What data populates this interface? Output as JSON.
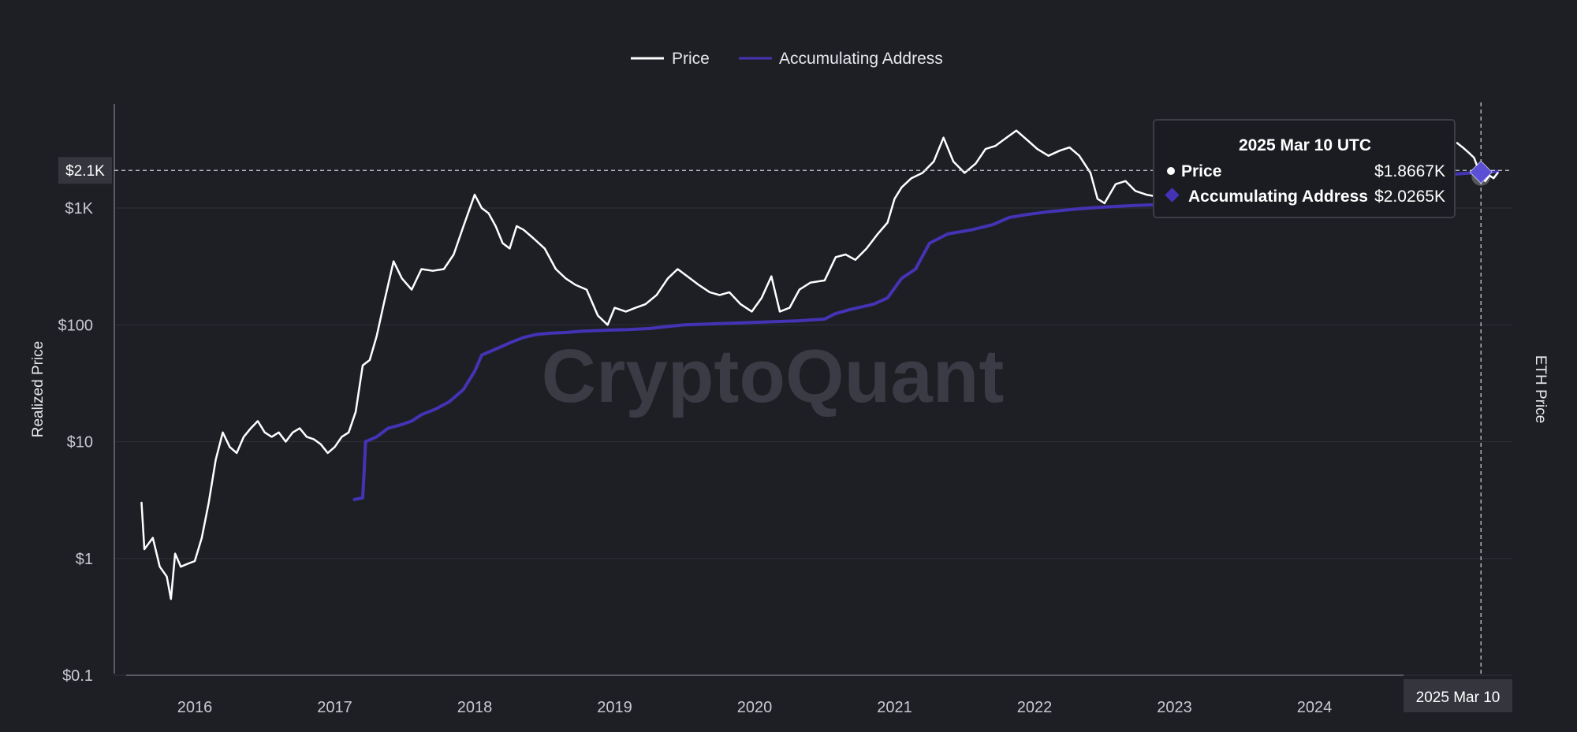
{
  "chart_data": {
    "type": "line",
    "title": "",
    "ylabel": "Realized Price",
    "y2label": "ETH Price",
    "yscale": "log",
    "ylim": [
      0.1,
      5000
    ],
    "xlim": [
      2015.6,
      2025.35
    ],
    "watermark": "CryptoQuant",
    "legend": {
      "placement": "top-center"
    },
    "grid": true,
    "y_ticks": [
      {
        "value": 0.1,
        "label": "$0.1"
      },
      {
        "value": 1,
        "label": "$1"
      },
      {
        "value": 10,
        "label": "$10"
      },
      {
        "value": 100,
        "label": "$100"
      },
      {
        "value": 1000,
        "label": "$1K"
      }
    ],
    "x_ticks": [
      {
        "value": 2016,
        "label": "2016"
      },
      {
        "value": 2017,
        "label": "2017"
      },
      {
        "value": 2018,
        "label": "2018"
      },
      {
        "value": 2019,
        "label": "2019"
      },
      {
        "value": 2020,
        "label": "2020"
      },
      {
        "value": 2021,
        "label": "2021"
      },
      {
        "value": 2022,
        "label": "2022"
      },
      {
        "value": 2023,
        "label": "2023"
      },
      {
        "value": 2024,
        "label": "2024"
      }
    ],
    "crosshair": {
      "x": 2025.19,
      "y": 2100,
      "y_label": "$2.1K",
      "x_label": "2025 Mar 10"
    },
    "tooltip": {
      "title": "2025 Mar 10 UTC",
      "rows": [
        {
          "label": "Price",
          "value": "$1.8667K"
        },
        {
          "label": "Accumulating Address",
          "value": "$2.0265K"
        }
      ]
    },
    "series": [
      {
        "name": "Price",
        "color": "#ffffff",
        "points": [
          [
            2015.62,
            3.0
          ],
          [
            2015.64,
            1.2
          ],
          [
            2015.7,
            1.5
          ],
          [
            2015.75,
            0.85
          ],
          [
            2015.8,
            0.7
          ],
          [
            2015.83,
            0.45
          ],
          [
            2015.86,
            1.1
          ],
          [
            2015.9,
            0.85
          ],
          [
            2015.95,
            0.9
          ],
          [
            2016.0,
            0.95
          ],
          [
            2016.05,
            1.5
          ],
          [
            2016.1,
            3.0
          ],
          [
            2016.15,
            7.0
          ],
          [
            2016.2,
            12.0
          ],
          [
            2016.25,
            9.0
          ],
          [
            2016.3,
            8.0
          ],
          [
            2016.35,
            11.0
          ],
          [
            2016.4,
            13.0
          ],
          [
            2016.45,
            15.0
          ],
          [
            2016.5,
            12.0
          ],
          [
            2016.55,
            11.0
          ],
          [
            2016.6,
            12.0
          ],
          [
            2016.65,
            10.0
          ],
          [
            2016.7,
            12.0
          ],
          [
            2016.75,
            13.0
          ],
          [
            2016.8,
            11.0
          ],
          [
            2016.85,
            10.5
          ],
          [
            2016.9,
            9.5
          ],
          [
            2016.95,
            8.0
          ],
          [
            2017.0,
            9.0
          ],
          [
            2017.05,
            11.0
          ],
          [
            2017.1,
            12.0
          ],
          [
            2017.15,
            18.0
          ],
          [
            2017.2,
            45.0
          ],
          [
            2017.25,
            50.0
          ],
          [
            2017.3,
            80.0
          ],
          [
            2017.35,
            150.0
          ],
          [
            2017.42,
            350.0
          ],
          [
            2017.48,
            250.0
          ],
          [
            2017.55,
            200.0
          ],
          [
            2017.62,
            300.0
          ],
          [
            2017.7,
            290.0
          ],
          [
            2017.78,
            300.0
          ],
          [
            2017.85,
            400.0
          ],
          [
            2017.92,
            700.0
          ],
          [
            2018.0,
            1300.0
          ],
          [
            2018.05,
            1000.0
          ],
          [
            2018.1,
            900.0
          ],
          [
            2018.15,
            700.0
          ],
          [
            2018.2,
            500.0
          ],
          [
            2018.25,
            450.0
          ],
          [
            2018.3,
            700.0
          ],
          [
            2018.35,
            650.0
          ],
          [
            2018.42,
            550.0
          ],
          [
            2018.5,
            450.0
          ],
          [
            2018.58,
            300.0
          ],
          [
            2018.65,
            250.0
          ],
          [
            2018.72,
            220.0
          ],
          [
            2018.8,
            200.0
          ],
          [
            2018.88,
            120.0
          ],
          [
            2018.95,
            100.0
          ],
          [
            2019.0,
            140.0
          ],
          [
            2019.08,
            130.0
          ],
          [
            2019.15,
            140.0
          ],
          [
            2019.22,
            150.0
          ],
          [
            2019.3,
            180.0
          ],
          [
            2019.38,
            250.0
          ],
          [
            2019.45,
            300.0
          ],
          [
            2019.52,
            260.0
          ],
          [
            2019.6,
            220.0
          ],
          [
            2019.68,
            190.0
          ],
          [
            2019.75,
            180.0
          ],
          [
            2019.82,
            190.0
          ],
          [
            2019.9,
            150.0
          ],
          [
            2019.98,
            130.0
          ],
          [
            2020.05,
            170.0
          ],
          [
            2020.12,
            260.0
          ],
          [
            2020.18,
            130.0
          ],
          [
            2020.25,
            140.0
          ],
          [
            2020.32,
            200.0
          ],
          [
            2020.4,
            230.0
          ],
          [
            2020.5,
            240.0
          ],
          [
            2020.58,
            380.0
          ],
          [
            2020.65,
            400.0
          ],
          [
            2020.72,
            360.0
          ],
          [
            2020.8,
            450.0
          ],
          [
            2020.88,
            600.0
          ],
          [
            2020.95,
            750.0
          ],
          [
            2021.0,
            1200.0
          ],
          [
            2021.05,
            1500.0
          ],
          [
            2021.12,
            1800.0
          ],
          [
            2021.2,
            2000.0
          ],
          [
            2021.28,
            2500.0
          ],
          [
            2021.35,
            4000.0
          ],
          [
            2021.42,
            2500.0
          ],
          [
            2021.5,
            2000.0
          ],
          [
            2021.58,
            2400.0
          ],
          [
            2021.65,
            3200.0
          ],
          [
            2021.72,
            3400.0
          ],
          [
            2021.8,
            4000.0
          ],
          [
            2021.87,
            4600.0
          ],
          [
            2021.95,
            3800.0
          ],
          [
            2022.02,
            3200.0
          ],
          [
            2022.1,
            2800.0
          ],
          [
            2022.18,
            3100.0
          ],
          [
            2022.25,
            3300.0
          ],
          [
            2022.32,
            2800.0
          ],
          [
            2022.4,
            2000.0
          ],
          [
            2022.45,
            1200.0
          ],
          [
            2022.5,
            1100.0
          ],
          [
            2022.58,
            1600.0
          ],
          [
            2022.65,
            1700.0
          ],
          [
            2022.72,
            1400.0
          ],
          [
            2022.8,
            1300.0
          ],
          [
            2022.88,
            1250.0
          ],
          [
            2022.95,
            1200.0
          ],
          [
            2023.0,
            1250.0
          ]
        ],
        "points_tail": [
          [
            2025.02,
            3600.0
          ],
          [
            2025.06,
            3300.0
          ],
          [
            2025.1,
            3000.0
          ],
          [
            2025.14,
            2700.0
          ],
          [
            2025.19,
            1867.0
          ],
          [
            2025.22,
            1700.0
          ],
          [
            2025.25,
            1900.0
          ],
          [
            2025.28,
            1800.0
          ],
          [
            2025.31,
            2000.0
          ]
        ]
      },
      {
        "name": "Accumulating Address",
        "color": "#4433b5",
        "points": [
          [
            2017.14,
            3.2
          ],
          [
            2017.2,
            3.3
          ],
          [
            2017.21,
            5.5
          ],
          [
            2017.22,
            10.0
          ],
          [
            2017.3,
            11.0
          ],
          [
            2017.38,
            13.0
          ],
          [
            2017.48,
            14.0
          ],
          [
            2017.55,
            15.0
          ],
          [
            2017.62,
            17.0
          ],
          [
            2017.72,
            19.0
          ],
          [
            2017.82,
            22.0
          ],
          [
            2017.92,
            28.0
          ],
          [
            2018.0,
            40.0
          ],
          [
            2018.05,
            55.0
          ],
          [
            2018.15,
            62.0
          ],
          [
            2018.25,
            70.0
          ],
          [
            2018.35,
            78.0
          ],
          [
            2018.45,
            83.0
          ],
          [
            2018.55,
            85.0
          ],
          [
            2018.65,
            86.0
          ],
          [
            2018.75,
            88.0
          ],
          [
            2018.85,
            89.0
          ],
          [
            2018.95,
            90.0
          ],
          [
            2019.1,
            91.0
          ],
          [
            2019.25,
            93.0
          ],
          [
            2019.35,
            96.0
          ],
          [
            2019.5,
            100.0
          ],
          [
            2019.7,
            102.0
          ],
          [
            2019.9,
            104.0
          ],
          [
            2020.1,
            106.0
          ],
          [
            2020.3,
            108.0
          ],
          [
            2020.5,
            112.0
          ],
          [
            2020.58,
            125.0
          ],
          [
            2020.68,
            135.0
          ],
          [
            2020.85,
            150.0
          ],
          [
            2020.95,
            170.0
          ],
          [
            2021.05,
            250.0
          ],
          [
            2021.15,
            300.0
          ],
          [
            2021.25,
            500.0
          ],
          [
            2021.38,
            600.0
          ],
          [
            2021.55,
            650.0
          ],
          [
            2021.7,
            720.0
          ],
          [
            2021.82,
            830.0
          ],
          [
            2021.95,
            880.0
          ],
          [
            2022.1,
            930.0
          ],
          [
            2022.3,
            980.0
          ],
          [
            2022.5,
            1020.0
          ],
          [
            2022.7,
            1050.0
          ],
          [
            2022.9,
            1070.0
          ],
          [
            2023.0,
            1100.0
          ]
        ],
        "points_tail": [
          [
            2025.0,
            1950.0
          ],
          [
            2025.1,
            1990.0
          ],
          [
            2025.19,
            2026.5
          ],
          [
            2025.25,
            2040.0
          ],
          [
            2025.31,
            2050.0
          ]
        ]
      }
    ]
  }
}
